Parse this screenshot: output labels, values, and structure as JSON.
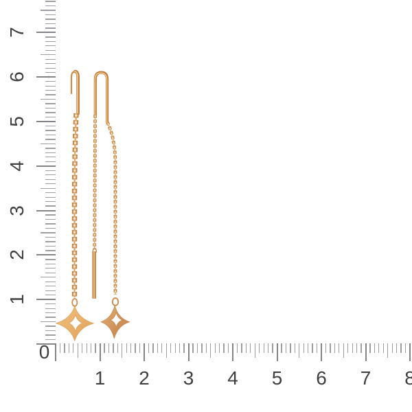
{
  "scene": {
    "background": "#ffffff",
    "subject": "Pair of rose-gold threader chain earrings with four-pointed star charm drops, shown against centimeter rulers"
  },
  "rulers": {
    "origin_label": "0",
    "tick_color": "#9c9da0",
    "major_tick_color": "#828387",
    "label_color": "#3f4040",
    "vertical": {
      "labels": [
        "1",
        "2",
        "3",
        "4",
        "5",
        "6",
        "7"
      ],
      "max_mm": 77
    },
    "horizontal": {
      "labels": [
        "1",
        "2",
        "3",
        "4",
        "5",
        "6",
        "7",
        "8"
      ],
      "max_mm": 80
    }
  },
  "earrings": {
    "metal_colors": {
      "wire_base": "#c07c3c",
      "wire_mid": "#cf8d48",
      "wire_highlight": "#f2ca8e",
      "chain": "#c5864a",
      "chain_spine": "#e0aa6c",
      "chain_light": "#f6e3c8",
      "charm_left_light": "#f2c07e",
      "charm_left_dark": "#e0a258",
      "charm_right_light": "#e5b073",
      "charm_right_dark": "#bd7c45"
    },
    "left": {
      "parts": [
        "hook-pin",
        "cable-chain",
        "jump-ring",
        "star-charm"
      ]
    },
    "right": {
      "parts": [
        "u-loop",
        "left-chain",
        "threader-bar",
        "right-chain",
        "jump-ring",
        "star-charm"
      ]
    }
  }
}
